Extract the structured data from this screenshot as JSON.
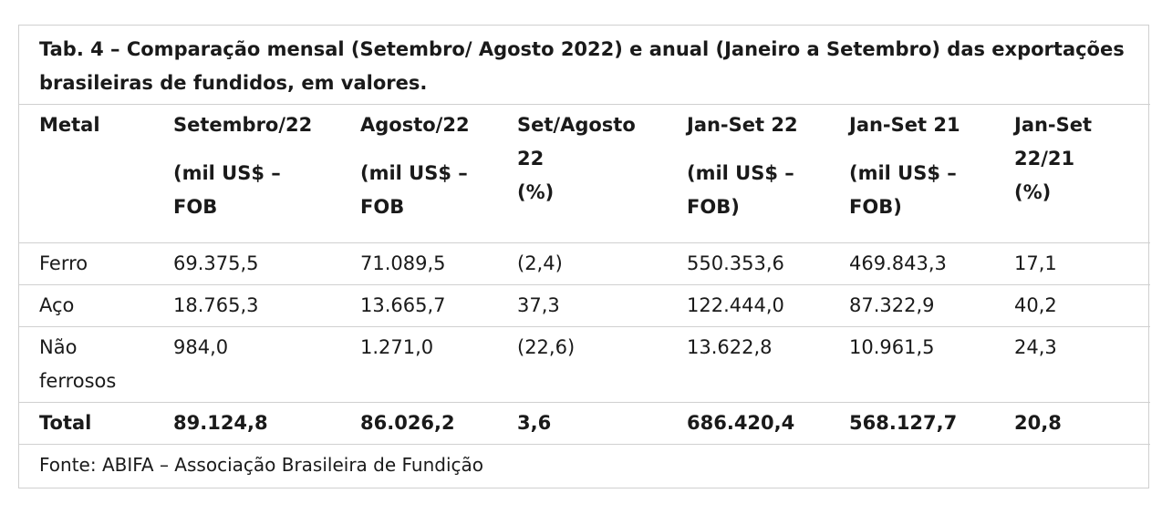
{
  "caption_line1": "Tab. 4 – Comparação mensal (Setembro/ Agosto 2022) e anual (Janeiro a Setembro) das exportações",
  "caption_line2": "brasileiras de fundidos, em valores.",
  "headers": [
    [
      "Metal"
    ],
    [
      "Setembro/22",
      "",
      "(mil US$ –",
      "FOB"
    ],
    [
      "Agosto/22",
      "",
      "(mil US$ –",
      "FOB"
    ],
    [
      "Set/Agosto",
      "22",
      "(%)"
    ],
    [
      "Jan-Set 22",
      "",
      "(mil US$ –",
      "FOB)"
    ],
    [
      "Jan-Set 21",
      "",
      "(mil US$ –",
      "FOB)"
    ],
    [
      "Jan-Set",
      "22/21",
      "(%)"
    ]
  ],
  "rows": [
    {
      "metal": [
        "Ferro"
      ],
      "values": [
        "69.375,5",
        "71.089,5",
        "(2,4)",
        "550.353,6",
        "469.843,3",
        "17,1"
      ]
    },
    {
      "metal": [
        "Aço"
      ],
      "values": [
        "18.765,3",
        "13.665,7",
        "37,3",
        "122.444,0",
        "87.322,9",
        "40,2"
      ]
    },
    {
      "metal": [
        "Não",
        "ferrosos"
      ],
      "values": [
        "984,0",
        "1.271,0",
        "(22,6)",
        "13.622,8",
        "10.961,5",
        "24,3"
      ]
    }
  ],
  "total": {
    "label": "Total",
    "values": [
      "89.124,8",
      "86.026,2",
      "3,6",
      "686.420,4",
      "568.127,7",
      "20,8"
    ]
  },
  "source": "Fonte: ABIFA – Associação Brasileira de Fundição"
}
